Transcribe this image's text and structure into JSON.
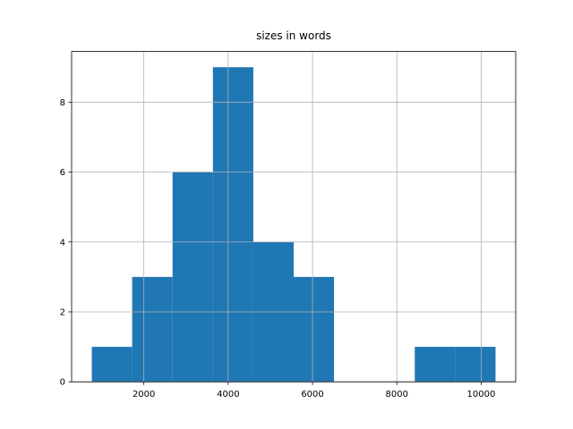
{
  "chart_data": {
    "type": "histogram",
    "title": "sizes in words",
    "bins": [
      766,
      1723,
      2681,
      3638,
      4596,
      5553,
      6510,
      7468,
      8425,
      9383,
      10340
    ],
    "values": [
      1,
      3,
      6,
      9,
      4,
      3,
      0,
      0,
      1,
      1
    ],
    "color": "#1f77b4",
    "xlim": [
      287,
      10819
    ],
    "xticks": [
      2000,
      4000,
      6000,
      8000,
      10000
    ],
    "ylim": [
      0,
      9.45
    ],
    "yticks": [
      0,
      2,
      4,
      6,
      8
    ],
    "grid": true
  }
}
